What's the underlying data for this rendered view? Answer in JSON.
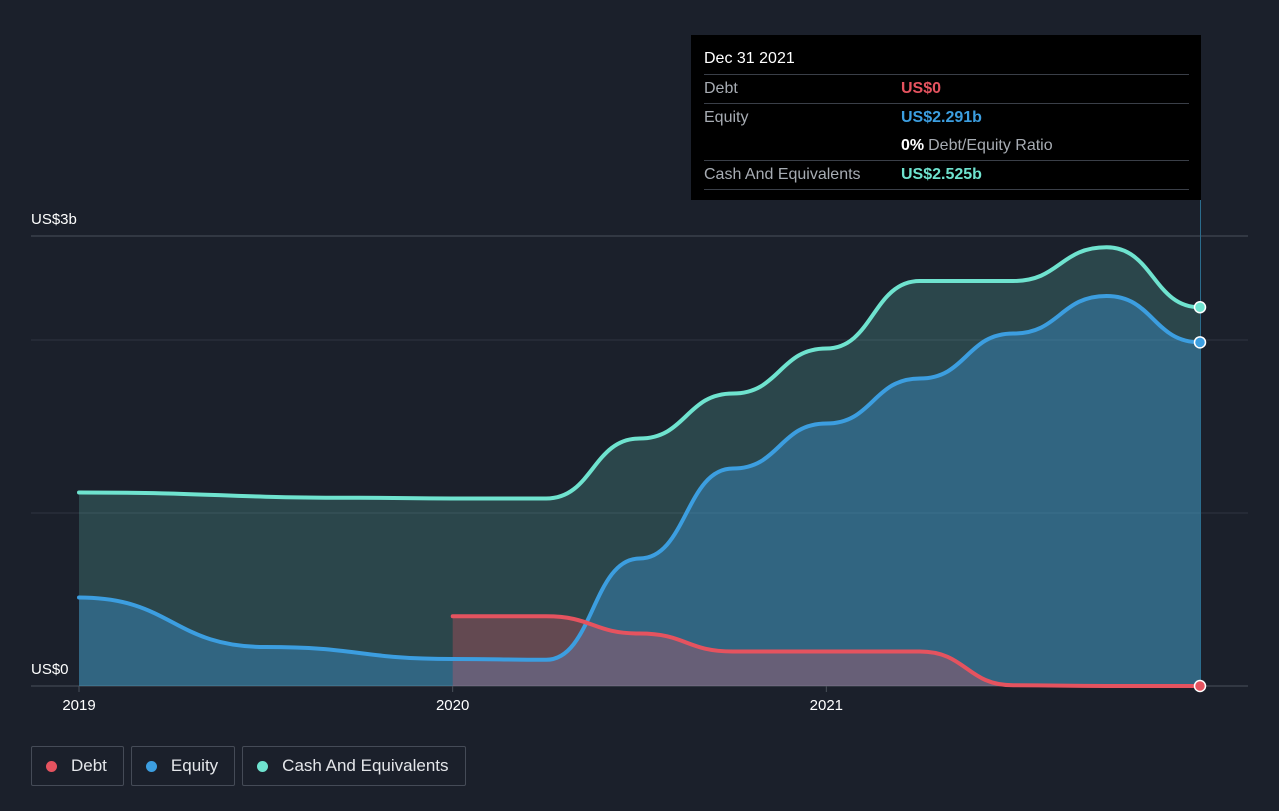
{
  "chart_data": {
    "type": "area",
    "y_axis_labels": {
      "top": "US$3b",
      "bottom": "US$0"
    },
    "ylim": [
      0,
      3000
    ],
    "unit": "US$ millions",
    "x_ticks": [
      {
        "label": "2019",
        "t": 2019.0
      },
      {
        "label": "2020",
        "t": 2020.0
      },
      {
        "label": "2021",
        "t": 2021.0
      }
    ],
    "x_range": [
      2019.0,
      2022.0
    ],
    "series": [
      {
        "key": "cash",
        "name": "Cash And Equivalents",
        "color": "#6fe3cf",
        "points": [
          [
            2019.0,
            1290
          ],
          [
            2019.75,
            1255
          ],
          [
            2020.0,
            1250
          ],
          [
            2020.25,
            1250
          ],
          [
            2020.5,
            1650
          ],
          [
            2020.75,
            1950
          ],
          [
            2021.0,
            2250
          ],
          [
            2021.25,
            2700
          ],
          [
            2021.5,
            2700
          ],
          [
            2021.75,
            2925
          ],
          [
            2022.0,
            2525
          ]
        ]
      },
      {
        "key": "equity",
        "name": "Equity",
        "color": "#3c9ee0",
        "points": [
          [
            2019.0,
            590
          ],
          [
            2019.5,
            260
          ],
          [
            2020.0,
            180
          ],
          [
            2020.25,
            175
          ],
          [
            2020.5,
            850
          ],
          [
            2020.75,
            1450
          ],
          [
            2021.0,
            1750
          ],
          [
            2021.25,
            2050
          ],
          [
            2021.5,
            2350
          ],
          [
            2021.75,
            2600
          ],
          [
            2022.0,
            2291
          ]
        ]
      },
      {
        "key": "debt",
        "name": "Debt",
        "color": "#e5535f",
        "points": [
          [
            2020.0,
            465
          ],
          [
            2020.25,
            465
          ],
          [
            2020.5,
            350
          ],
          [
            2020.75,
            230
          ],
          [
            2021.0,
            230
          ],
          [
            2021.25,
            230
          ],
          [
            2021.5,
            5
          ],
          [
            2021.75,
            0
          ],
          [
            2022.0,
            0
          ]
        ]
      }
    ],
    "end_markers": [
      {
        "series": "cash",
        "value": 2525
      },
      {
        "series": "equity",
        "value": 2291
      },
      {
        "series": "debt",
        "value": 0
      }
    ]
  },
  "tooltip": {
    "date": "Dec 31 2021",
    "debt_label": "Debt",
    "debt_value": "US$0",
    "equity_label": "Equity",
    "equity_value": "US$2.291b",
    "ratio_value": "0%",
    "ratio_label": "Debt/Equity Ratio",
    "cash_label": "Cash And Equivalents",
    "cash_value": "US$2.525b"
  },
  "legend": [
    {
      "label": "Debt",
      "color": "#e5535f"
    },
    {
      "label": "Equity",
      "color": "#3c9ee0"
    },
    {
      "label": "Cash And Equivalents",
      "color": "#6fe3cf"
    }
  ],
  "colors": {
    "background": "#1b202b",
    "debt": "#e5535f",
    "equity": "#3c9ee0",
    "cash": "#6fe3cf"
  }
}
